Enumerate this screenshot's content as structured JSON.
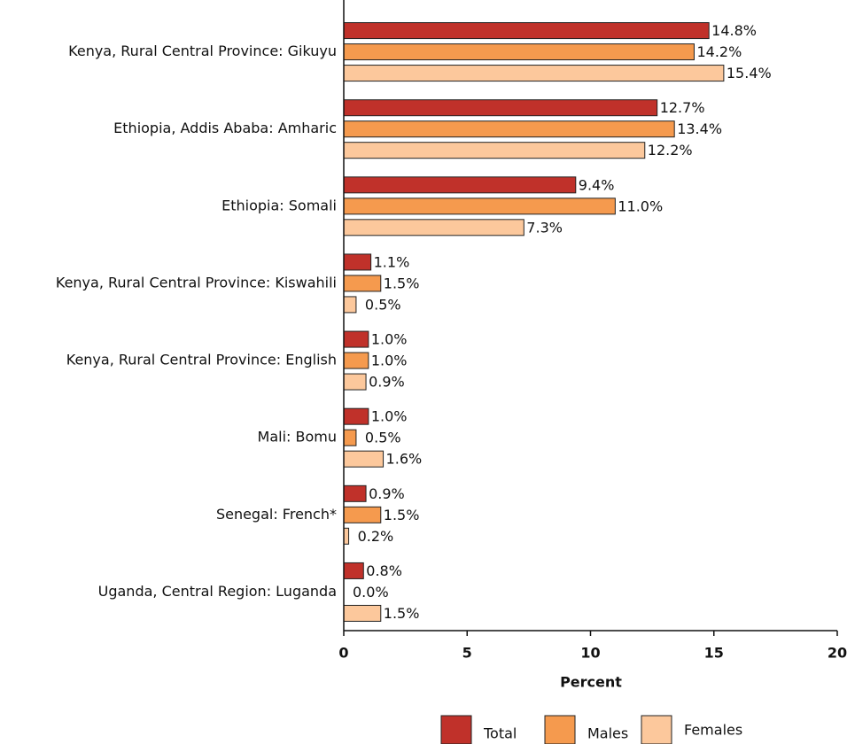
{
  "chart_data": {
    "type": "hbar",
    "categories": [
      "Kenya, Rural Central Province: Gikuyu",
      "Ethiopia, Addis Ababa: Amharic",
      "Ethiopia: Somali",
      "Kenya, Rural Central Province: Kiswahili",
      "Kenya, Rural Central Province: English",
      "Mali: Bomu",
      "Senegal: French*",
      "Uganda, Central Region: Luganda"
    ],
    "series": [
      {
        "name": "Total",
        "color": "#c0312a",
        "values": [
          14.8,
          12.7,
          9.4,
          1.1,
          1.0,
          1.0,
          0.9,
          0.8
        ],
        "value_labels": [
          "14.8%",
          "12.7%",
          "9.4%",
          "1.1%",
          "1.0%",
          "1.0%",
          "0.9%",
          "0.8%"
        ]
      },
      {
        "name": "Males",
        "color": "#f59a4e",
        "values": [
          14.2,
          13.4,
          11.0,
          1.5,
          1.0,
          0.5,
          1.5,
          0.0
        ],
        "value_labels": [
          "14.2%",
          "13.4%",
          "11.0%",
          "1.5%",
          "1.0%",
          "0.5%",
          "1.5%",
          "0.0%"
        ]
      },
      {
        "name": "Females",
        "color": "#fcc89c",
        "values": [
          15.4,
          12.2,
          7.3,
          0.5,
          0.9,
          1.6,
          0.2,
          1.5
        ],
        "value_labels": [
          "15.4%",
          "12.2%",
          "7.3%",
          "0.5%",
          "0.9%",
          "1.6%",
          "0.2%",
          "1.5%"
        ]
      }
    ],
    "xlabel": "Percent",
    "xlim": [
      0,
      20
    ],
    "xticks": [
      0,
      5,
      10,
      15,
      20
    ],
    "legend": "bottom"
  }
}
